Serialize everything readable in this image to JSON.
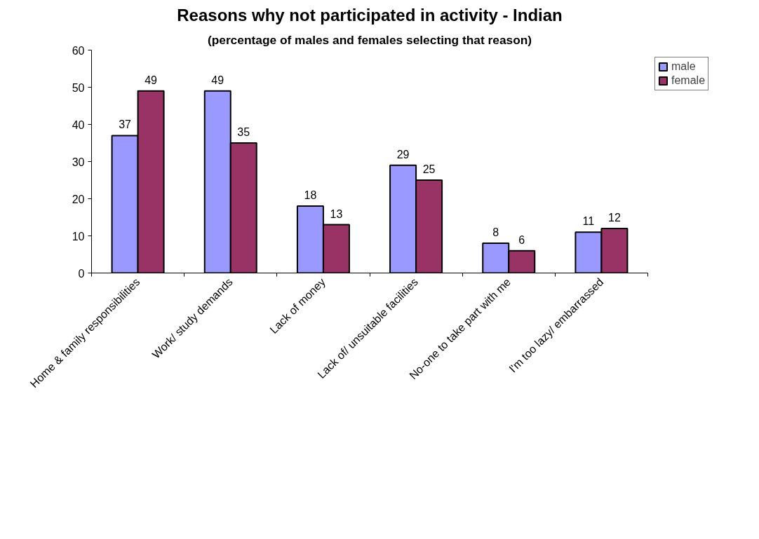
{
  "chart_data": {
    "type": "bar",
    "title": "Reasons why not participated in activity - Indian",
    "subtitle": "(percentage of males and females selecting that reason)",
    "categories": [
      "Home & family responsibilities",
      "Work/ study demands",
      "Lack of money",
      "Lack of/ unsuitable facilities",
      "No-one to take part with me",
      "I'm too lazy/ embarrassed"
    ],
    "series": [
      {
        "name": "male",
        "color": "#9999ff",
        "values": [
          37,
          49,
          18,
          29,
          8,
          11
        ]
      },
      {
        "name": "female",
        "color": "#993366",
        "values": [
          49,
          35,
          13,
          25,
          6,
          12
        ]
      }
    ],
    "ylim": [
      0,
      60
    ],
    "yticks": [
      0,
      10,
      20,
      30,
      40,
      50,
      60
    ],
    "grid": false,
    "legend": "top right",
    "data_labels": true
  }
}
